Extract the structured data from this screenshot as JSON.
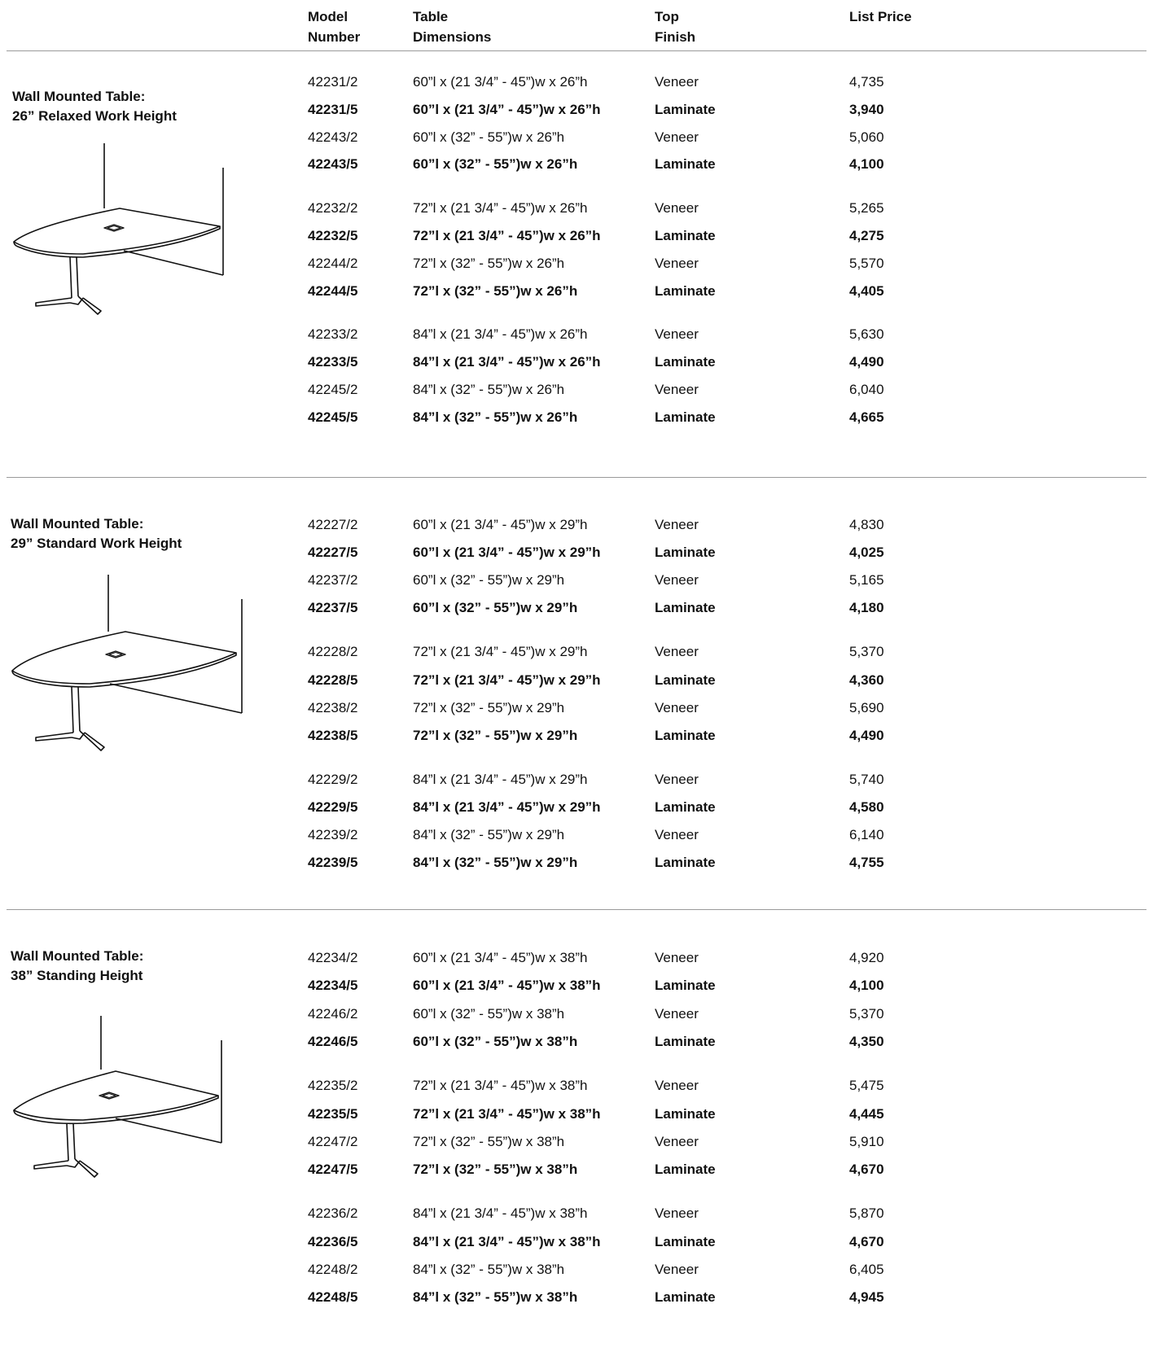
{
  "header": {
    "model_l1": "Model",
    "model_l2": "Number",
    "dim_l1": "Table",
    "dim_l2": "Dimensions",
    "fin_l1": "Top",
    "fin_l2": "Finish",
    "price": "List Price"
  },
  "sections": [
    {
      "title_l1": "Wall Mounted Table:",
      "title_l2": "26” Relaxed Work Height",
      "rows": [
        {
          "model": "42231/2",
          "dim": "60”l x (21 3/4” - 45”)w x 26”h",
          "finish": "Veneer",
          "price": "4,735"
        },
        {
          "model": "42231/5",
          "dim": "60”l x (21 3/4” - 45”)w x 26”h",
          "finish": "Laminate",
          "price": "3,940"
        },
        {
          "model": "42243/2",
          "dim": "60”l x (32” - 55”)w x 26”h",
          "finish": "Veneer",
          "price": "5,060"
        },
        {
          "model": "42243/5",
          "dim": "60”l x (32” - 55”)w x 26”h",
          "finish": "Laminate",
          "price": "4,100"
        },
        {
          "model": "42232/2",
          "dim": "72”l x (21 3/4” - 45”)w x 26”h",
          "finish": "Veneer",
          "price": "5,265"
        },
        {
          "model": "42232/5",
          "dim": "72”l x (21 3/4” - 45”)w x 26”h",
          "finish": "Laminate",
          "price": "4,275"
        },
        {
          "model": "42244/2",
          "dim": "72”l x (32” - 55”)w x 26”h",
          "finish": "Veneer",
          "price": "5,570"
        },
        {
          "model": "42244/5",
          "dim": "72”l x (32” - 55”)w x 26”h",
          "finish": "Laminate",
          "price": "4,405"
        },
        {
          "model": "42233/2",
          "dim": "84”l x (21 3/4” - 45”)w x 26”h",
          "finish": "Veneer",
          "price": "5,630"
        },
        {
          "model": "42233/5",
          "dim": "84”l x (21 3/4” - 45”)w x 26”h",
          "finish": "Laminate",
          "price": "4,490"
        },
        {
          "model": "42245/2",
          "dim": "84”l x (32” - 55”)w x 26”h",
          "finish": "Veneer",
          "price": "6,040"
        },
        {
          "model": "42245/5",
          "dim": "84”l x (32” - 55”)w x 26”h",
          "finish": "Laminate",
          "price": "4,665"
        }
      ]
    },
    {
      "title_l1": "Wall Mounted Table:",
      "title_l2": "29” Standard Work Height",
      "rows": [
        {
          "model": "42227/2",
          "dim": "60”l x (21 3/4” - 45”)w x 29”h",
          "finish": "Veneer",
          "price": "4,830"
        },
        {
          "model": "42227/5",
          "dim": "60”l x (21 3/4” - 45”)w x 29”h",
          "finish": "Laminate",
          "price": "4,025"
        },
        {
          "model": "42237/2",
          "dim": "60”l x (32” - 55”)w x 29”h",
          "finish": "Veneer",
          "price": "5,165"
        },
        {
          "model": "42237/5",
          "dim": "60”l x (32” - 55”)w x 29”h",
          "finish": "Laminate",
          "price": "4,180"
        },
        {
          "model": "42228/2",
          "dim": "72”l x (21 3/4” - 45”)w x 29”h",
          "finish": "Veneer",
          "price": "5,370"
        },
        {
          "model": "42228/5",
          "dim": "72”l x (21 3/4” - 45”)w x 29”h",
          "finish": "Laminate",
          "price": "4,360"
        },
        {
          "model": "42238/2",
          "dim": "72”l x (32” - 55”)w x 29”h",
          "finish": "Veneer",
          "price": "5,690"
        },
        {
          "model": "42238/5",
          "dim": "72”l x (32” - 55”)w x 29”h",
          "finish": "Laminate",
          "price": "4,490"
        },
        {
          "model": "42229/2",
          "dim": "84”l x (21 3/4” - 45”)w x 29”h",
          "finish": "Veneer",
          "price": "5,740"
        },
        {
          "model": "42229/5",
          "dim": "84”l x (21 3/4” - 45”)w x 29”h",
          "finish": "Laminate",
          "price": "4,580"
        },
        {
          "model": "42239/2",
          "dim": "84”l x (32” - 55”)w x 29”h",
          "finish": "Veneer",
          "price": "6,140"
        },
        {
          "model": "42239/5",
          "dim": "84”l x (32” - 55”)w x 29”h",
          "finish": "Laminate",
          "price": "4,755"
        }
      ]
    },
    {
      "title_l1": "Wall Mounted Table:",
      "title_l2": "38” Standing Height",
      "rows": [
        {
          "model": "42234/2",
          "dim": "60”l x (21 3/4” - 45”)w x 38”h",
          "finish": "Veneer",
          "price": "4,920"
        },
        {
          "model": "42234/5",
          "dim": "60”l x (21 3/4” - 45”)w x 38”h",
          "finish": "Laminate",
          "price": "4,100"
        },
        {
          "model": "42246/2",
          "dim": "60”l x (32” - 55”)w x 38”h",
          "finish": "Veneer",
          "price": "5,370"
        },
        {
          "model": "42246/5",
          "dim": "60”l x (32” - 55”)w x 38”h",
          "finish": "Laminate",
          "price": "4,350"
        },
        {
          "model": "42235/2",
          "dim": "72”l x (21 3/4” - 45”)w x 38”h",
          "finish": "Veneer",
          "price": "5,475"
        },
        {
          "model": "42235/5",
          "dim": "72”l x (21 3/4” - 45”)w x 38”h",
          "finish": "Laminate",
          "price": "4,445"
        },
        {
          "model": "42247/2",
          "dim": "72”l x (32” - 55”)w x 38”h",
          "finish": "Veneer",
          "price": "5,910"
        },
        {
          "model": "42247/5",
          "dim": "72”l x (32” - 55”)w x 38”h",
          "finish": "Laminate",
          "price": "4,670"
        },
        {
          "model": "42236/2",
          "dim": "84”l x (21 3/4” - 45”)w x 38”h",
          "finish": "Veneer",
          "price": "5,870"
        },
        {
          "model": "42236/5",
          "dim": "84”l x (21 3/4” - 45”)w x 38”h",
          "finish": "Laminate",
          "price": "4,670"
        },
        {
          "model": "42248/2",
          "dim": "84”l x (32” - 55”)w x 38”h",
          "finish": "Veneer",
          "price": "6,405"
        },
        {
          "model": "42248/5",
          "dim": "84”l x (32” - 55”)w x 38”h",
          "finish": "Laminate",
          "price": "4,945"
        }
      ]
    }
  ]
}
